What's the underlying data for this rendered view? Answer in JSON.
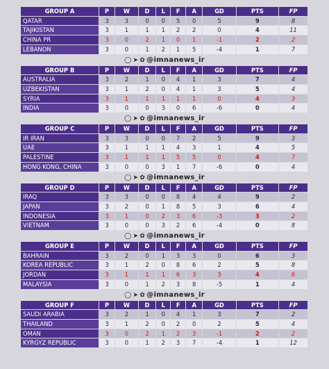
{
  "headers": [
    "P",
    "W",
    "D",
    "L",
    "F",
    "A",
    "GD",
    "PTS",
    "FP"
  ],
  "watermark": "@imnanews_ir",
  "groups": [
    {
      "title": "GROUP A",
      "rows": [
        {
          "team": "QATAR",
          "p": "3",
          "w": "3",
          "d": "0",
          "l": "0",
          "f": "5",
          "a": "0",
          "gd": "5",
          "pts": "9",
          "fp": "8",
          "red": false
        },
        {
          "team": "TAJIKISTAN",
          "p": "3",
          "w": "1",
          "d": "1",
          "l": "1",
          "f": "2",
          "a": "2",
          "gd": "0",
          "pts": "4",
          "fp": "11",
          "red": false
        },
        {
          "team": "CHINA PR",
          "p": "3",
          "w": "0",
          "d": "2",
          "l": "1",
          "f": "0",
          "a": "1",
          "gd": "-1",
          "pts": "2",
          "fp": "2",
          "red": true
        },
        {
          "team": "LEBANON",
          "p": "3",
          "w": "0",
          "d": "1",
          "l": "2",
          "f": "1",
          "a": "5",
          "gd": "-4",
          "pts": "1",
          "fp": "7",
          "red": false
        }
      ]
    },
    {
      "title": "GROUP B",
      "rows": [
        {
          "team": "AUSTRALIA",
          "p": "3",
          "w": "2",
          "d": "1",
          "l": "0",
          "f": "4",
          "a": "1",
          "gd": "3",
          "pts": "7",
          "fp": "4",
          "red": false
        },
        {
          "team": "UZBEKISTAN",
          "p": "3",
          "w": "1",
          "d": "2",
          "l": "0",
          "f": "4",
          "a": "1",
          "gd": "3",
          "pts": "5",
          "fp": "4",
          "red": false
        },
        {
          "team": "SYRIA",
          "p": "3",
          "w": "1",
          "d": "1",
          "l": "1",
          "f": "1",
          "a": "1",
          "gd": "0",
          "pts": "4",
          "fp": "3",
          "red": true
        },
        {
          "team": "INDIA",
          "p": "3",
          "w": "0",
          "d": "0",
          "l": "3",
          "f": "0",
          "a": "6",
          "gd": "-6",
          "pts": "0",
          "fp": "4",
          "red": false
        }
      ]
    },
    {
      "title": "GROUP C",
      "rows": [
        {
          "team": "IR IRAN",
          "p": "3",
          "w": "3",
          "d": "0",
          "l": "0",
          "f": "7",
          "a": "2",
          "gd": "5",
          "pts": "9",
          "fp": "3",
          "red": false
        },
        {
          "team": "UAE",
          "p": "3",
          "w": "1",
          "d": "1",
          "l": "1",
          "f": "4",
          "a": "3",
          "gd": "1",
          "pts": "4",
          "fp": "5",
          "red": false
        },
        {
          "team": "PALESTINE",
          "p": "3",
          "w": "1",
          "d": "1",
          "l": "1",
          "f": "5",
          "a": "5",
          "gd": "0",
          "pts": "4",
          "fp": "7",
          "red": true
        },
        {
          "team": "HONG KONG, CHINA",
          "p": "3",
          "w": "0",
          "d": "0",
          "l": "3",
          "f": "1",
          "a": "7",
          "gd": "-6",
          "pts": "0",
          "fp": "4",
          "red": false
        }
      ]
    },
    {
      "title": "GROUP D",
      "rows": [
        {
          "team": "IRAQ",
          "p": "3",
          "w": "3",
          "d": "0",
          "l": "0",
          "f": "8",
          "a": "4",
          "gd": "4",
          "pts": "9",
          "fp": "2",
          "red": false
        },
        {
          "team": "JAPAN",
          "p": "3",
          "w": "2",
          "d": "0",
          "l": "1",
          "f": "8",
          "a": "5",
          "gd": "3",
          "pts": "6",
          "fp": "4",
          "red": false
        },
        {
          "team": "INDONESIA",
          "p": "3",
          "w": "1",
          "d": "0",
          "l": "2",
          "f": "3",
          "a": "6",
          "gd": "-3",
          "pts": "3",
          "fp": "2",
          "red": true
        },
        {
          "team": "VIETNAM",
          "p": "3",
          "w": "0",
          "d": "0",
          "l": "3",
          "f": "2",
          "a": "6",
          "gd": "-4",
          "pts": "0",
          "fp": "8",
          "red": false
        }
      ]
    },
    {
      "title": "GROUP E",
      "rows": [
        {
          "team": "BAHRAIN",
          "p": "3",
          "w": "2",
          "d": "0",
          "l": "1",
          "f": "3",
          "a": "3",
          "gd": "0",
          "pts": "6",
          "fp": "3",
          "red": false
        },
        {
          "team": "KOREA REPUBLIC",
          "p": "3",
          "w": "1",
          "d": "2",
          "l": "0",
          "f": "8",
          "a": "6",
          "gd": "2",
          "pts": "5",
          "fp": "8",
          "red": false
        },
        {
          "team": "JORDAN",
          "p": "3",
          "w": "1",
          "d": "1",
          "l": "1",
          "f": "6",
          "a": "3",
          "gd": "3",
          "pts": "4",
          "fp": "6",
          "red": true
        },
        {
          "team": "MALAYSIA",
          "p": "3",
          "w": "0",
          "d": "1",
          "l": "2",
          "f": "3",
          "a": "8",
          "gd": "-5",
          "pts": "1",
          "fp": "4",
          "red": false
        }
      ]
    },
    {
      "title": "GROUP F",
      "rows": [
        {
          "team": "SAUDI ARABIA",
          "p": "3",
          "w": "2",
          "d": "1",
          "l": "0",
          "f": "4",
          "a": "1",
          "gd": "3",
          "pts": "7",
          "fp": "2",
          "red": false
        },
        {
          "team": "THAILAND",
          "p": "3",
          "w": "1",
          "d": "2",
          "l": "0",
          "f": "2",
          "a": "0",
          "gd": "2",
          "pts": "5",
          "fp": "4",
          "red": false
        },
        {
          "team": "OMAN",
          "p": "3",
          "w": "0",
          "d": "2",
          "l": "1",
          "f": "2",
          "a": "3",
          "gd": "-1",
          "pts": "2",
          "fp": "2",
          "red": true
        },
        {
          "team": "KYRGYZ REPUBLIC",
          "p": "3",
          "w": "0",
          "d": "1",
          "l": "2",
          "f": "3",
          "a": "7",
          "gd": "-4",
          "pts": "1",
          "fp": "12",
          "red": false
        }
      ]
    }
  ],
  "colors": {
    "header": "#4b2e89",
    "row": "#c5c3d2",
    "row_alt": "#e9e8ee",
    "highlight": "#d01818"
  },
  "icons": [
    "instagram-icon",
    "telegram-icon",
    "twitter-icon"
  ]
}
